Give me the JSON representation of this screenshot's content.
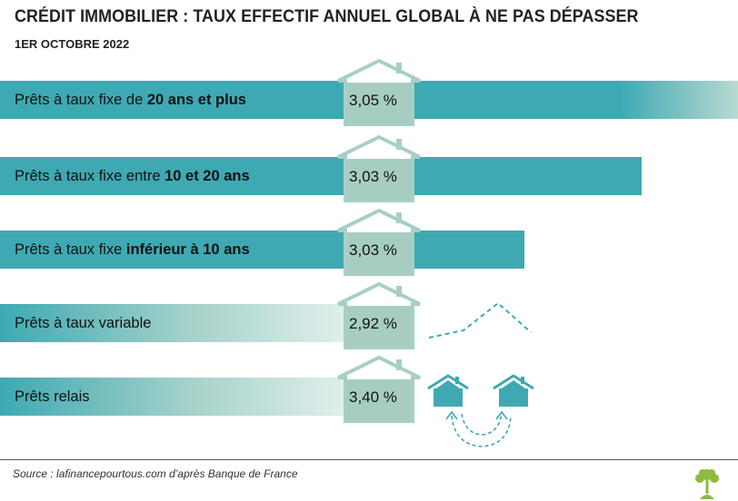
{
  "title": "CRÉDIT IMMOBILIER : TAUX EFFECTIF ANNUEL GLOBAL À NE PAS DÉPASSER",
  "subtitle": "1ER OCTOBRE 2022",
  "source": "Source : lafinancepourtous.com d’après Banque de France",
  "colors": {
    "bar": "#3ea9b3",
    "bar_light": "#c2ddd5",
    "house": "#a8cfc4",
    "icon": "#3ea9b3",
    "logo": "#8dbb3e"
  },
  "chart_data": {
    "type": "bar",
    "orientation": "horizontal",
    "categories": [
      "Prêts à taux fixe de 20 ans et plus",
      "Prêts à taux fixe entre 10 et 20 ans",
      "Prêts à taux fixe inférieur à 10 ans",
      "Prêts à taux variable",
      "Prêts relais"
    ],
    "values": [
      3.05,
      3.03,
      3.03,
      2.92,
      3.4
    ],
    "value_labels": [
      "3,05 %",
      "3,03 %",
      "3,03 %",
      "2,92 %",
      "3,40 %"
    ],
    "label_parts": [
      {
        "normal": "Prêts à taux fixe de ",
        "bold": "20 ans et plus"
      },
      {
        "normal": "Prêts à taux fixe entre ",
        "bold": "10 et 20 ans"
      },
      {
        "normal": "Prêts à taux fixe ",
        "bold": "inférieur à 10 ans"
      },
      {
        "normal": "Prêts à taux variable",
        "bold": ""
      },
      {
        "normal": "Prêts relais",
        "bold": ""
      }
    ],
    "bar_styles": [
      "solid-fade-end",
      "solid",
      "solid",
      "gradient",
      "gradient"
    ],
    "decorations": [
      "",
      "",
      "",
      "dashed-rising-line-icon",
      "swap-houses-icon"
    ]
  }
}
